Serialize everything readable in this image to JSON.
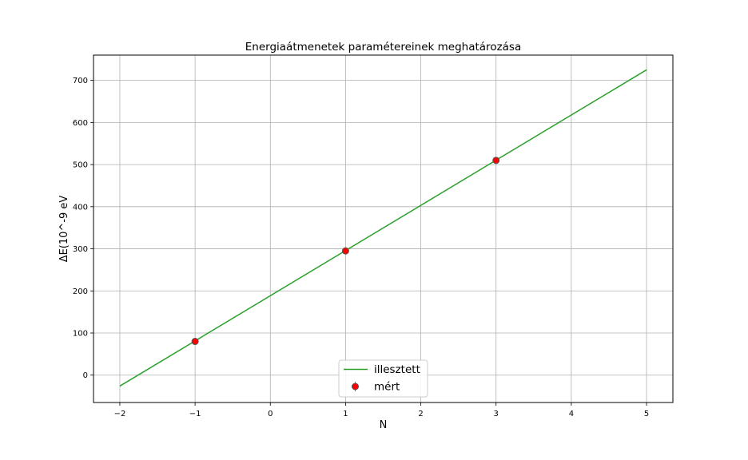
{
  "chart_data": {
    "type": "scatter",
    "title": "Energiaátmenetek paramétereinek meghatározása",
    "xlabel": "N",
    "ylabel": "ΔE(10^-9 eV",
    "xlim": [
      -2.35,
      5.35
    ],
    "ylim": [
      -65,
      760
    ],
    "xticks": [
      -2,
      -1,
      0,
      1,
      2,
      3,
      4,
      5
    ],
    "xtick_labels": [
      "−2",
      "−1",
      "0",
      "1",
      "2",
      "3",
      "4",
      "5"
    ],
    "yticks": [
      0,
      100,
      200,
      300,
      400,
      500,
      600,
      700
    ],
    "ytick_labels": [
      "0",
      "100",
      "200",
      "300",
      "400",
      "500",
      "600",
      "700"
    ],
    "grid": true,
    "legend_position": "lower-center",
    "series": [
      {
        "name": "illesztett",
        "kind": "line",
        "color": "#2ca02c",
        "x": [
          -2,
          5
        ],
        "y": [
          -26,
          725
        ]
      },
      {
        "name": "mért",
        "kind": "errorbar-points",
        "color": "#ff0000",
        "edge_color": "#555555",
        "x": [
          -1,
          1,
          3
        ],
        "y": [
          80,
          295,
          510
        ]
      }
    ]
  }
}
